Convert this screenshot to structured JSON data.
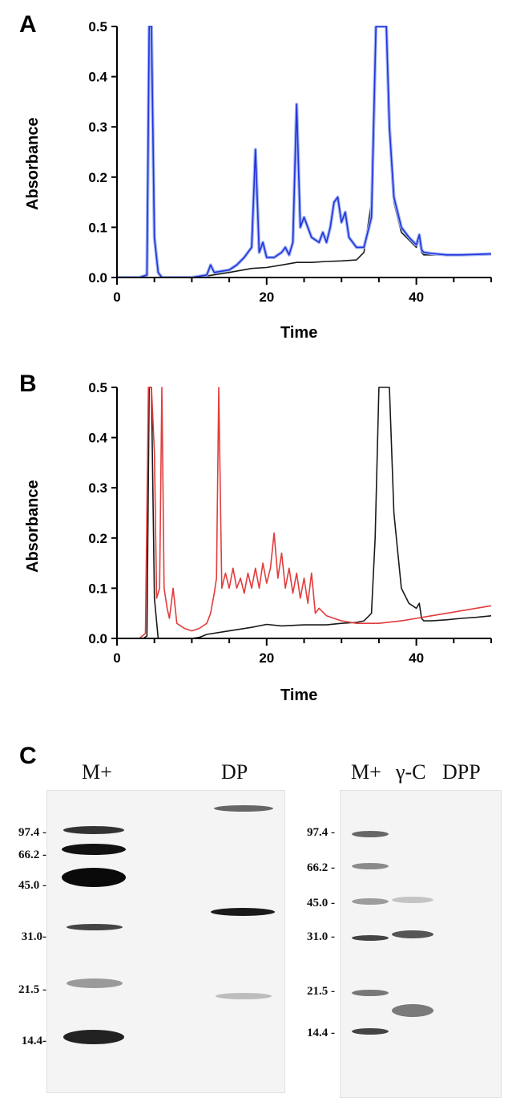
{
  "panels": {
    "a": "A",
    "b": "B",
    "c": "C"
  },
  "chart_data": [
    {
      "type": "line",
      "panel": "A",
      "xlabel": "Time",
      "ylabel": "Absorbance",
      "xlim": [
        0,
        50
      ],
      "ylim": [
        0,
        0.5
      ],
      "xticks": [
        0,
        20,
        40
      ],
      "yticks": [
        "0.0",
        "0.1",
        "0.2",
        "0.3",
        "0.4",
        "0.5"
      ],
      "colors": {
        "black": "#1a1a1a",
        "blue": "#2233dd",
        "lightblue": "#9fb4f0"
      },
      "series": [
        {
          "name": "black",
          "x": [
            0,
            3,
            4,
            4.3,
            4.6,
            5,
            5.5,
            6,
            8,
            10,
            12,
            15,
            18,
            20,
            22,
            24,
            26,
            28,
            30,
            32,
            33,
            34,
            34.6,
            35,
            35.5,
            36,
            36.4,
            37,
            38,
            39,
            40,
            40.4,
            40.7,
            41,
            42,
            44,
            46,
            48,
            50
          ],
          "y": [
            0,
            0,
            0.005,
            0.5,
            0.5,
            0.08,
            0.01,
            0,
            0,
            0,
            0.003,
            0.01,
            0.018,
            0.02,
            0.025,
            0.03,
            0.03,
            0.032,
            0.033,
            0.035,
            0.05,
            0.15,
            0.5,
            0.5,
            0.5,
            0.5,
            0.3,
            0.15,
            0.09,
            0.075,
            0.06,
            0.075,
            0.05,
            0.045,
            0.045,
            0.045,
            0.045,
            0.046,
            0.047
          ]
        },
        {
          "name": "blue",
          "x": [
            0,
            3,
            4,
            4.3,
            4.6,
            5,
            5.5,
            6,
            8,
            10,
            12,
            12.5,
            13,
            15,
            16,
            17,
            17.5,
            18,
            18.5,
            19,
            19.5,
            20,
            21,
            22,
            22.5,
            23,
            23.5,
            24,
            24.5,
            25,
            26,
            27,
            27.5,
            28,
            28.5,
            29,
            29.5,
            30,
            30.5,
            31,
            32,
            33,
            34,
            34.6,
            35,
            35.5,
            36,
            36.4,
            37,
            38,
            39,
            40,
            40.4,
            40.7,
            41,
            42,
            44,
            46,
            48,
            50
          ],
          "y": [
            0,
            0,
            0.005,
            0.5,
            0.5,
            0.08,
            0.01,
            0,
            0,
            0,
            0.005,
            0.025,
            0.01,
            0.015,
            0.025,
            0.04,
            0.05,
            0.06,
            0.255,
            0.05,
            0.07,
            0.04,
            0.04,
            0.05,
            0.06,
            0.045,
            0.07,
            0.345,
            0.1,
            0.12,
            0.08,
            0.07,
            0.09,
            0.07,
            0.1,
            0.15,
            0.16,
            0.11,
            0.13,
            0.08,
            0.06,
            0.06,
            0.12,
            0.5,
            0.5,
            0.5,
            0.5,
            0.3,
            0.16,
            0.1,
            0.08,
            0.065,
            0.085,
            0.055,
            0.05,
            0.048,
            0.045,
            0.045,
            0.046,
            0.047
          ]
        }
      ]
    },
    {
      "type": "line",
      "panel": "B",
      "xlabel": "Time",
      "ylabel": "Absorbance",
      "xlim": [
        0,
        50
      ],
      "ylim": [
        0,
        0.5
      ],
      "xticks": [
        0,
        20,
        40
      ],
      "yticks": [
        "0.0",
        "0.1",
        "0.2",
        "0.3",
        "0.4",
        "0.5"
      ],
      "colors": {
        "black": "#1a1a1a",
        "red": "#e23c3c"
      },
      "series": [
        {
          "name": "black",
          "x": [
            0,
            3.5,
            4,
            4.3,
            4.6,
            5,
            5.5,
            6,
            10,
            11,
            12,
            15,
            18,
            20,
            22,
            25,
            28,
            30,
            32,
            33,
            34,
            34.5,
            35,
            35.5,
            36,
            36.4,
            37,
            38,
            39,
            40,
            40.4,
            40.7,
            41,
            42,
            44,
            46,
            48,
            50
          ],
          "y": [
            0,
            0,
            0.005,
            0.5,
            0.5,
            0.08,
            0,
            0,
            0,
            0.002,
            0.008,
            0.015,
            0.022,
            0.028,
            0.025,
            0.027,
            0.027,
            0.03,
            0.032,
            0.035,
            0.05,
            0.2,
            0.5,
            0.5,
            0.5,
            0.5,
            0.25,
            0.1,
            0.07,
            0.06,
            0.07,
            0.04,
            0.035,
            0.035,
            0.037,
            0.04,
            0.042,
            0.045
          ]
        },
        {
          "name": "red",
          "x": [
            0,
            3,
            3.8,
            4.2,
            4.6,
            5,
            5.3,
            5.7,
            6,
            6.3,
            6.7,
            7,
            7.5,
            8,
            9,
            10,
            11,
            12,
            12.5,
            13,
            13.3,
            13.6,
            14,
            14.5,
            15,
            15.5,
            16,
            16.5,
            17,
            17.5,
            18,
            18.5,
            19,
            19.5,
            20,
            20.5,
            21,
            21.5,
            22,
            22.5,
            23,
            23.5,
            24,
            24.5,
            25,
            25.5,
            26,
            26.5,
            27,
            28,
            29,
            30,
            32,
            35,
            38,
            40,
            42,
            44,
            46,
            48,
            50
          ],
          "y": [
            0,
            0,
            0.01,
            0.5,
            0.5,
            0.37,
            0.08,
            0.1,
            0.5,
            0.1,
            0.06,
            0.04,
            0.1,
            0.03,
            0.02,
            0.015,
            0.02,
            0.03,
            0.05,
            0.09,
            0.12,
            0.5,
            0.1,
            0.13,
            0.1,
            0.14,
            0.1,
            0.12,
            0.09,
            0.13,
            0.1,
            0.14,
            0.1,
            0.15,
            0.11,
            0.14,
            0.21,
            0.12,
            0.17,
            0.1,
            0.14,
            0.09,
            0.13,
            0.08,
            0.12,
            0.07,
            0.13,
            0.05,
            0.06,
            0.045,
            0.04,
            0.035,
            0.03,
            0.03,
            0.035,
            0.04,
            0.045,
            0.05,
            0.055,
            0.06,
            0.065
          ]
        }
      ]
    }
  ],
  "gels": {
    "left": {
      "lanes": [
        "M+",
        "DP"
      ],
      "markers": [
        "97.4 -",
        "66.2 -",
        "45.0 -",
        "31.0-",
        "21.5 -",
        "14.4-"
      ]
    },
    "right": {
      "lanes": [
        "M+",
        "γ-C",
        "DPP"
      ],
      "markers": [
        "97.4 -",
        "66.2 -",
        "45.0 -",
        "31.0 -",
        "21.5 -",
        "14.4 -"
      ]
    }
  }
}
